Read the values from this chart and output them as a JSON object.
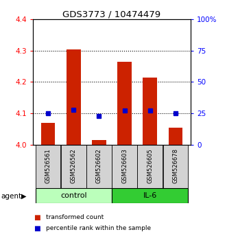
{
  "title": "GDS3773 / 10474479",
  "samples": [
    "GSM526561",
    "GSM526562",
    "GSM526602",
    "GSM526603",
    "GSM526605",
    "GSM526678"
  ],
  "red_values": [
    4.07,
    4.305,
    4.015,
    4.265,
    4.215,
    4.055
  ],
  "blue_values": [
    25,
    28,
    23,
    27,
    27,
    25
  ],
  "ylim": [
    4.0,
    4.4
  ],
  "y2lim": [
    0,
    100
  ],
  "yticks": [
    4.0,
    4.1,
    4.2,
    4.3,
    4.4
  ],
  "y2ticks": [
    0,
    25,
    50,
    75,
    100
  ],
  "y2ticklabels": [
    "0",
    "25",
    "50",
    "75",
    "100%"
  ],
  "groups": [
    {
      "label": "control",
      "indices": [
        0,
        1,
        2
      ],
      "color": "#bbffbb"
    },
    {
      "label": "IL-6",
      "indices": [
        3,
        4,
        5
      ],
      "color": "#33cc33"
    }
  ],
  "group_label": "agent",
  "bar_color": "#cc2200",
  "dot_color": "#0000cc",
  "legend_items": [
    {
      "label": "transformed count",
      "color": "#cc2200"
    },
    {
      "label": "percentile rank within the sample",
      "color": "#0000cc"
    }
  ]
}
